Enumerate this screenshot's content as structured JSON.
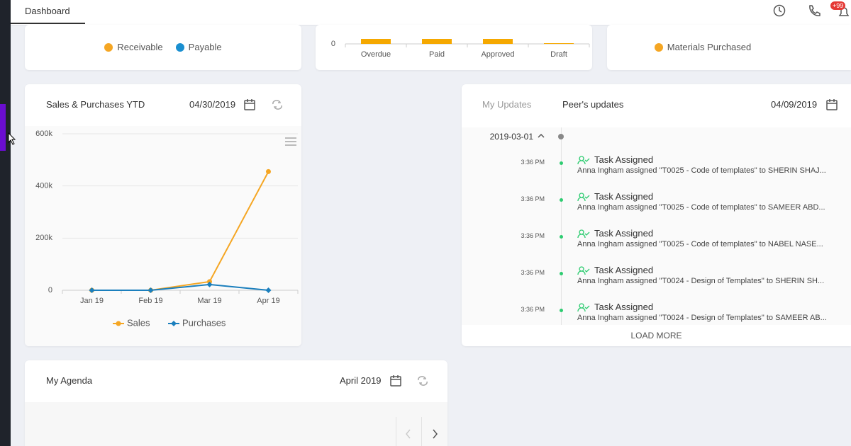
{
  "topbar": {
    "tab": "Dashboard",
    "badge": "+99"
  },
  "cards": {
    "receivables": {
      "legend": [
        {
          "name": "Receivable",
          "color": "#f5a623"
        },
        {
          "name": "Payable",
          "color": "#1a8fd0"
        }
      ]
    },
    "materials": {
      "legend": [
        {
          "name": "Materials Purchased",
          "color": "#f5a623"
        }
      ]
    }
  },
  "chart_data": [
    {
      "type": "bar",
      "categories": [
        "Overdue",
        "Paid",
        "Approved",
        "Draft"
      ],
      "yticks": [
        0
      ],
      "color": "#f5a800"
    },
    {
      "type": "line",
      "title": "Sales & Purchases YTD",
      "date": "04/30/2019",
      "categories": [
        "Jan 19",
        "Feb 19",
        "Mar 19",
        "Apr 19"
      ],
      "series": [
        {
          "name": "Sales",
          "color": "#f5a623",
          "values": [
            0,
            0,
            33000,
            455000
          ]
        },
        {
          "name": "Purchases",
          "color": "#1b7fbd",
          "values": [
            0,
            0,
            22000,
            0
          ]
        }
      ],
      "ylim": [
        0,
        600000
      ],
      "yticks": [
        0,
        {
          "value": 200000,
          "label": "200k"
        },
        {
          "value": 400000,
          "label": "400k"
        },
        {
          "value": 600000,
          "label": "600k"
        }
      ],
      "grid": true,
      "legend": "bottom"
    }
  ],
  "updates": {
    "tabs": [
      "My Updates",
      "Peer's updates"
    ],
    "date": "04/09/2019",
    "group": "2019-03-01",
    "items": [
      {
        "time": "3:36 PM",
        "title": "Task Assigned",
        "text": "Anna Ingham assigned \"T0025 - Code of templates\" to SHERIN SHAJ..."
      },
      {
        "time": "3:36 PM",
        "title": "Task Assigned",
        "text": "Anna Ingham assigned \"T0025 - Code of templates\" to SAMEER ABD..."
      },
      {
        "time": "3:36 PM",
        "title": "Task Assigned",
        "text": "Anna Ingham assigned \"T0025 - Code of templates\" to NABEL NASE..."
      },
      {
        "time": "3:36 PM",
        "title": "Task Assigned",
        "text": "Anna Ingham assigned \"T0024 - Design of Templates\" to SHERIN SH..."
      },
      {
        "time": "3:36 PM",
        "title": "Task Assigned",
        "text": "Anna Ingham assigned \"T0024 - Design of Templates\" to SAMEER AB..."
      }
    ],
    "load_more": "LOAD MORE"
  },
  "agenda": {
    "title": "My Agenda",
    "date": "April 2019"
  }
}
